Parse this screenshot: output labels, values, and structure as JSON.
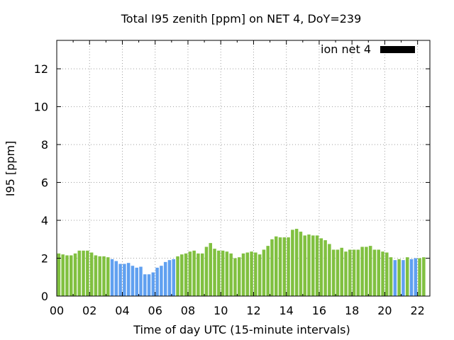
{
  "chart_data": {
    "type": "bar",
    "title": "Total I95 zenith [ppm] on NET 4, DoY=239",
    "xlabel": "Time of day UTC (15-minute intervals)",
    "ylabel": "I95 [ppm]",
    "xlim": [
      0,
      22.75
    ],
    "ylim": [
      0,
      13.5
    ],
    "grid": true,
    "legend_position": "top-right",
    "x_ticks": [
      0,
      2,
      4,
      6,
      8,
      10,
      12,
      14,
      16,
      18,
      20,
      22
    ],
    "x_tick_labels": [
      "00",
      "02",
      "04",
      "06",
      "08",
      "10",
      "12",
      "14",
      "16",
      "18",
      "20",
      "22"
    ],
    "y_ticks": [
      0,
      2,
      4,
      6,
      8,
      10,
      12
    ],
    "y_tick_labels": [
      "0",
      "2",
      "4",
      "6",
      "8",
      "10",
      "12"
    ],
    "bar_step_hours": 0.25,
    "colors": {
      "green": "#80c040",
      "blue": "#60a0f0",
      "legend": "#000000",
      "grid": "#a0a0a0"
    },
    "series": [
      {
        "name": "ion net 4",
        "values": [
          2.25,
          2.2,
          2.15,
          2.15,
          2.25,
          2.4,
          2.4,
          2.4,
          2.3,
          2.15,
          2.1,
          2.1,
          2.05,
          1.95,
          1.85,
          1.7,
          1.7,
          1.75,
          1.6,
          1.5,
          1.55,
          1.15,
          1.15,
          1.25,
          1.5,
          1.6,
          1.8,
          1.9,
          1.95,
          2.1,
          2.2,
          2.25,
          2.35,
          2.4,
          2.25,
          2.25,
          2.6,
          2.8,
          2.5,
          2.4,
          2.4,
          2.35,
          2.25,
          2.0,
          2.05,
          2.25,
          2.3,
          2.35,
          2.3,
          2.2,
          2.45,
          2.65,
          3.0,
          3.15,
          3.1,
          3.1,
          3.1,
          3.5,
          3.55,
          3.4,
          3.2,
          3.25,
          3.2,
          3.2,
          3.05,
          2.95,
          2.75,
          2.45,
          2.45,
          2.55,
          2.35,
          2.45,
          2.45,
          2.45,
          2.6,
          2.6,
          2.65,
          2.45,
          2.45,
          2.35,
          2.3,
          2.05,
          1.9,
          1.95,
          1.9,
          2.05,
          1.95,
          2.0,
          2.0,
          2.05
        ],
        "bar_colors": [
          "green",
          "green",
          "green",
          "green",
          "green",
          "green",
          "green",
          "green",
          "green",
          "green",
          "green",
          "green",
          "green",
          "blue",
          "blue",
          "blue",
          "blue",
          "blue",
          "blue",
          "blue",
          "blue",
          "blue",
          "blue",
          "blue",
          "blue",
          "blue",
          "blue",
          "blue",
          "blue",
          "green",
          "green",
          "green",
          "green",
          "green",
          "green",
          "green",
          "green",
          "green",
          "green",
          "green",
          "green",
          "green",
          "green",
          "green",
          "green",
          "green",
          "green",
          "green",
          "green",
          "green",
          "green",
          "green",
          "green",
          "green",
          "green",
          "green",
          "green",
          "green",
          "green",
          "green",
          "green",
          "green",
          "green",
          "green",
          "green",
          "green",
          "green",
          "green",
          "green",
          "green",
          "green",
          "green",
          "green",
          "green",
          "green",
          "green",
          "green",
          "green",
          "green",
          "green",
          "green",
          "green",
          "blue",
          "green",
          "blue",
          "green",
          "blue",
          "blue",
          "green",
          "green"
        ]
      }
    ]
  }
}
